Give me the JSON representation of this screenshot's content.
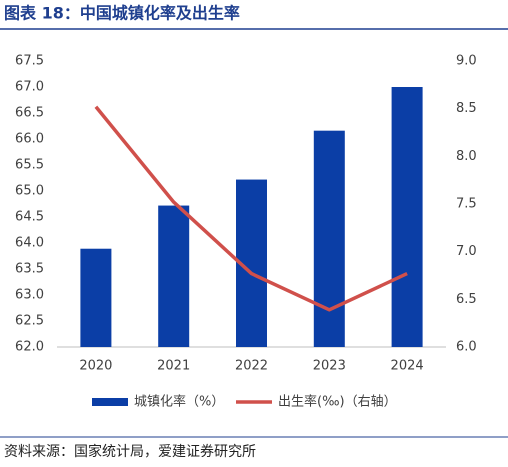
{
  "chart_data": {
    "type": "bar-line",
    "title": "图表 18：中国城镇化率及出生率",
    "source": "资料来源：国家统计局，爱建证券研究所",
    "categories": [
      "2020",
      "2021",
      "2022",
      "2023",
      "2024"
    ],
    "series": [
      {
        "name": "城镇化率（%）",
        "type": "bar",
        "color": "#0b3ea6",
        "values": [
          63.89,
          64.72,
          65.22,
          66.16,
          67.0
        ]
      },
      {
        "name": "出生率(‰)（右轴）",
        "type": "line",
        "color": "#d0504b",
        "axis": "y2",
        "values": [
          8.52,
          7.52,
          6.77,
          6.39,
          6.77
        ]
      }
    ],
    "ylim": [
      62,
      67.5
    ],
    "yticks": [
      {
        "value": 62,
        "label": "62.0"
      },
      62.5,
      {
        "value": 63,
        "label": "63.0"
      },
      63.5,
      {
        "value": 64,
        "label": "64.0"
      },
      64.5,
      {
        "value": 65,
        "label": "65.0"
      },
      65.5,
      {
        "value": 66,
        "label": "66.0"
      },
      66.5,
      {
        "value": 67,
        "label": "67.0"
      },
      67.5
    ],
    "y2lim": [
      6,
      9
    ],
    "y2ticks": [
      {
        "value": 6,
        "label": "6.0"
      },
      6.5,
      {
        "value": 7,
        "label": "7.0"
      },
      7.5,
      {
        "value": 8,
        "label": "8.0"
      },
      8.5,
      {
        "value": 9,
        "label": "9.0"
      }
    ],
    "grid": false,
    "legend": "bottom"
  }
}
